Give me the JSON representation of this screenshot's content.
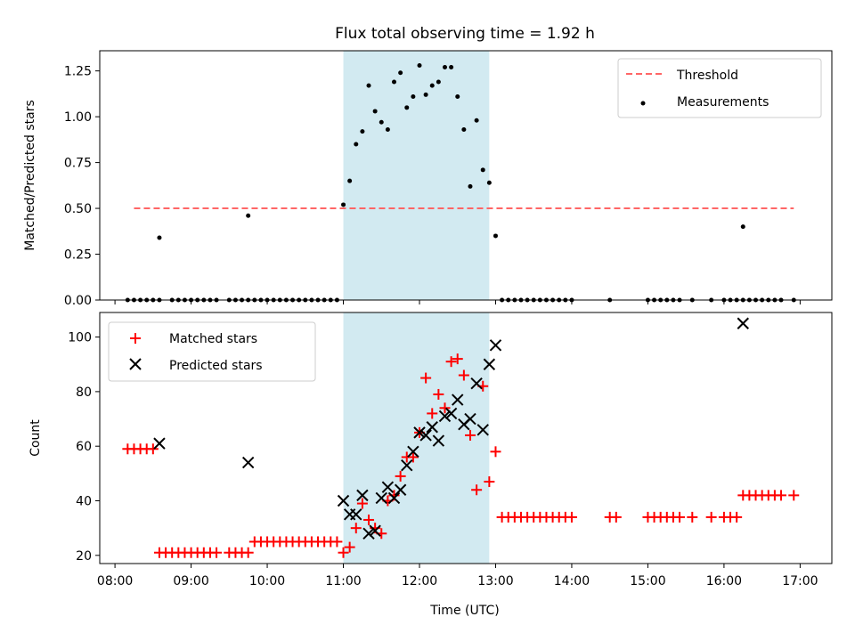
{
  "title": "Flux total observing time = 1.92 h",
  "highlight_band": {
    "start": "11:00",
    "end": "12:55",
    "color": "#add8e6"
  },
  "chart_data": [
    {
      "type": "scatter",
      "ylabel": "Matched/Predicted stars",
      "xlabel": "",
      "ylim": [
        0,
        1.36
      ],
      "yticks": [
        0.0,
        0.25,
        0.5,
        0.75,
        1.0,
        1.25
      ],
      "ytick_labels": [
        "0.00",
        "0.25",
        "0.50",
        "0.75",
        "1.00",
        "1.25"
      ],
      "legend_position": "upper right",
      "threshold": {
        "name": "Threshold",
        "value": 0.5,
        "from": "08:15",
        "to": "16:55",
        "color": "#ff6666",
        "style": "dashed"
      },
      "series": [
        {
          "name": "Measurements",
          "color": "#000000",
          "marker": "dot",
          "points": [
            [
              "08:10",
              0
            ],
            [
              "08:15",
              0
            ],
            [
              "08:20",
              0
            ],
            [
              "08:25",
              0
            ],
            [
              "08:30",
              0
            ],
            [
              "08:35",
              0
            ],
            [
              "08:35",
              0.34
            ],
            [
              "08:45",
              0
            ],
            [
              "08:50",
              0
            ],
            [
              "08:55",
              0
            ],
            [
              "09:00",
              0
            ],
            [
              "09:05",
              0
            ],
            [
              "09:10",
              0
            ],
            [
              "09:15",
              0
            ],
            [
              "09:20",
              0
            ],
            [
              "09:30",
              0
            ],
            [
              "09:35",
              0
            ],
            [
              "09:40",
              0
            ],
            [
              "09:45",
              0
            ],
            [
              "09:50",
              0
            ],
            [
              "09:45",
              0.46
            ],
            [
              "09:55",
              0
            ],
            [
              "10:00",
              0
            ],
            [
              "10:05",
              0
            ],
            [
              "10:10",
              0
            ],
            [
              "10:15",
              0
            ],
            [
              "10:20",
              0
            ],
            [
              "10:25",
              0
            ],
            [
              "10:30",
              0
            ],
            [
              "10:35",
              0
            ],
            [
              "10:40",
              0
            ],
            [
              "10:45",
              0
            ],
            [
              "10:50",
              0
            ],
            [
              "10:55",
              0
            ],
            [
              "11:00",
              0.52
            ],
            [
              "11:05",
              0.65
            ],
            [
              "11:10",
              0.85
            ],
            [
              "11:15",
              0.92
            ],
            [
              "11:20",
              1.17
            ],
            [
              "11:25",
              1.03
            ],
            [
              "11:30",
              0.97
            ],
            [
              "11:35",
              0.93
            ],
            [
              "11:40",
              1.19
            ],
            [
              "11:45",
              1.24
            ],
            [
              "11:50",
              1.05
            ],
            [
              "11:55",
              1.11
            ],
            [
              "12:00",
              1.28
            ],
            [
              "12:05",
              1.12
            ],
            [
              "12:10",
              1.17
            ],
            [
              "12:15",
              1.19
            ],
            [
              "12:20",
              1.27
            ],
            [
              "12:25",
              1.27
            ],
            [
              "12:30",
              1.11
            ],
            [
              "12:35",
              0.93
            ],
            [
              "12:40",
              0.62
            ],
            [
              "12:45",
              0.98
            ],
            [
              "12:50",
              0.71
            ],
            [
              "12:55",
              0.64
            ],
            [
              "13:00",
              0.35
            ],
            [
              "13:05",
              0
            ],
            [
              "13:10",
              0
            ],
            [
              "13:15",
              0
            ],
            [
              "13:20",
              0
            ],
            [
              "13:25",
              0
            ],
            [
              "13:30",
              0
            ],
            [
              "13:35",
              0
            ],
            [
              "13:40",
              0
            ],
            [
              "13:45",
              0
            ],
            [
              "13:50",
              0
            ],
            [
              "13:55",
              0
            ],
            [
              "14:00",
              0
            ],
            [
              "14:30",
              0
            ],
            [
              "15:00",
              0
            ],
            [
              "15:05",
              0
            ],
            [
              "15:10",
              0
            ],
            [
              "15:15",
              0
            ],
            [
              "15:20",
              0
            ],
            [
              "15:25",
              0
            ],
            [
              "15:35",
              0
            ],
            [
              "15:50",
              0
            ],
            [
              "16:00",
              0
            ],
            [
              "16:05",
              0
            ],
            [
              "16:10",
              0
            ],
            [
              "16:15",
              0.4
            ],
            [
              "16:15",
              0
            ],
            [
              "16:20",
              0
            ],
            [
              "16:25",
              0
            ],
            [
              "16:30",
              0
            ],
            [
              "16:35",
              0
            ],
            [
              "16:40",
              0
            ],
            [
              "16:45",
              0
            ],
            [
              "16:55",
              0
            ]
          ]
        }
      ]
    },
    {
      "type": "scatter",
      "ylabel": "Count",
      "xlabel": "Time (UTC)",
      "ylim": [
        17,
        109
      ],
      "yticks": [
        20,
        40,
        60,
        80,
        100
      ],
      "ytick_labels": [
        "20",
        "40",
        "60",
        "80",
        "100"
      ],
      "xticks": [
        "08:00",
        "09:00",
        "10:00",
        "11:00",
        "12:00",
        "13:00",
        "14:00",
        "15:00",
        "16:00",
        "17:00"
      ],
      "xtick_labels": [
        "08:00",
        "09:00",
        "10:00",
        "11:00",
        "12:00",
        "13:00",
        "14:00",
        "15:00",
        "16:00",
        "17:00"
      ],
      "legend_position": "upper left",
      "series": [
        {
          "name": "Matched stars",
          "color": "#ff0000",
          "marker": "plus",
          "points": [
            [
              "08:10",
              59
            ],
            [
              "08:15",
              59
            ],
            [
              "08:20",
              59
            ],
            [
              "08:25",
              59
            ],
            [
              "08:30",
              59
            ],
            [
              "08:35",
              21
            ],
            [
              "08:40",
              21
            ],
            [
              "08:45",
              21
            ],
            [
              "08:50",
              21
            ],
            [
              "08:55",
              21
            ],
            [
              "09:00",
              21
            ],
            [
              "09:05",
              21
            ],
            [
              "09:10",
              21
            ],
            [
              "09:15",
              21
            ],
            [
              "09:20",
              21
            ],
            [
              "09:30",
              21
            ],
            [
              "09:35",
              21
            ],
            [
              "09:40",
              21
            ],
            [
              "09:45",
              21
            ],
            [
              "09:50",
              25
            ],
            [
              "09:55",
              25
            ],
            [
              "10:00",
              25
            ],
            [
              "10:05",
              25
            ],
            [
              "10:10",
              25
            ],
            [
              "10:15",
              25
            ],
            [
              "10:20",
              25
            ],
            [
              "10:25",
              25
            ],
            [
              "10:30",
              25
            ],
            [
              "10:35",
              25
            ],
            [
              "10:40",
              25
            ],
            [
              "10:45",
              25
            ],
            [
              "10:50",
              25
            ],
            [
              "10:55",
              25
            ],
            [
              "11:00",
              21
            ],
            [
              "11:05",
              23
            ],
            [
              "11:10",
              30
            ],
            [
              "11:15",
              39
            ],
            [
              "11:20",
              33
            ],
            [
              "11:25",
              30
            ],
            [
              "11:30",
              28
            ],
            [
              "11:35",
              40
            ],
            [
              "11:40",
              42
            ],
            [
              "11:45",
              49
            ],
            [
              "11:50",
              56
            ],
            [
              "11:55",
              56
            ],
            [
              "12:00",
              65
            ],
            [
              "12:05",
              85
            ],
            [
              "12:10",
              72
            ],
            [
              "12:15",
              79
            ],
            [
              "12:20",
              74
            ],
            [
              "12:25",
              91
            ],
            [
              "12:30",
              92
            ],
            [
              "12:35",
              86
            ],
            [
              "12:40",
              64
            ],
            [
              "12:45",
              44
            ],
            [
              "12:50",
              82
            ],
            [
              "12:55",
              47
            ],
            [
              "13:00",
              58
            ],
            [
              "13:05",
              34
            ],
            [
              "13:10",
              34
            ],
            [
              "13:15",
              34
            ],
            [
              "13:20",
              34
            ],
            [
              "13:25",
              34
            ],
            [
              "13:30",
              34
            ],
            [
              "13:35",
              34
            ],
            [
              "13:40",
              34
            ],
            [
              "13:45",
              34
            ],
            [
              "13:50",
              34
            ],
            [
              "13:55",
              34
            ],
            [
              "14:00",
              34
            ],
            [
              "14:30",
              34
            ],
            [
              "14:35",
              34
            ],
            [
              "15:00",
              34
            ],
            [
              "15:05",
              34
            ],
            [
              "15:10",
              34
            ],
            [
              "15:15",
              34
            ],
            [
              "15:20",
              34
            ],
            [
              "15:25",
              34
            ],
            [
              "15:35",
              34
            ],
            [
              "15:50",
              34
            ],
            [
              "16:00",
              34
            ],
            [
              "16:05",
              34
            ],
            [
              "16:10",
              34
            ],
            [
              "16:15",
              42
            ],
            [
              "16:20",
              42
            ],
            [
              "16:25",
              42
            ],
            [
              "16:30",
              42
            ],
            [
              "16:35",
              42
            ],
            [
              "16:40",
              42
            ],
            [
              "16:45",
              42
            ],
            [
              "16:55",
              42
            ]
          ]
        },
        {
          "name": "Predicted stars",
          "color": "#000000",
          "marker": "x",
          "points": [
            [
              "08:35",
              61
            ],
            [
              "09:45",
              54
            ],
            [
              "11:00",
              40
            ],
            [
              "11:05",
              35
            ],
            [
              "11:10",
              35
            ],
            [
              "11:15",
              42
            ],
            [
              "11:20",
              28
            ],
            [
              "11:25",
              29
            ],
            [
              "11:30",
              41
            ],
            [
              "11:35",
              45
            ],
            [
              "11:40",
              41
            ],
            [
              "11:45",
              44
            ],
            [
              "11:50",
              53
            ],
            [
              "11:55",
              58
            ],
            [
              "12:00",
              65
            ],
            [
              "12:05",
              64
            ],
            [
              "12:10",
              67
            ],
            [
              "12:15",
              62
            ],
            [
              "12:20",
              71
            ],
            [
              "12:25",
              72
            ],
            [
              "12:30",
              77
            ],
            [
              "12:35",
              68
            ],
            [
              "12:40",
              70
            ],
            [
              "12:45",
              83
            ],
            [
              "12:50",
              66
            ],
            [
              "12:55",
              90
            ],
            [
              "13:00",
              97
            ],
            [
              "16:15",
              105
            ]
          ]
        }
      ]
    }
  ]
}
